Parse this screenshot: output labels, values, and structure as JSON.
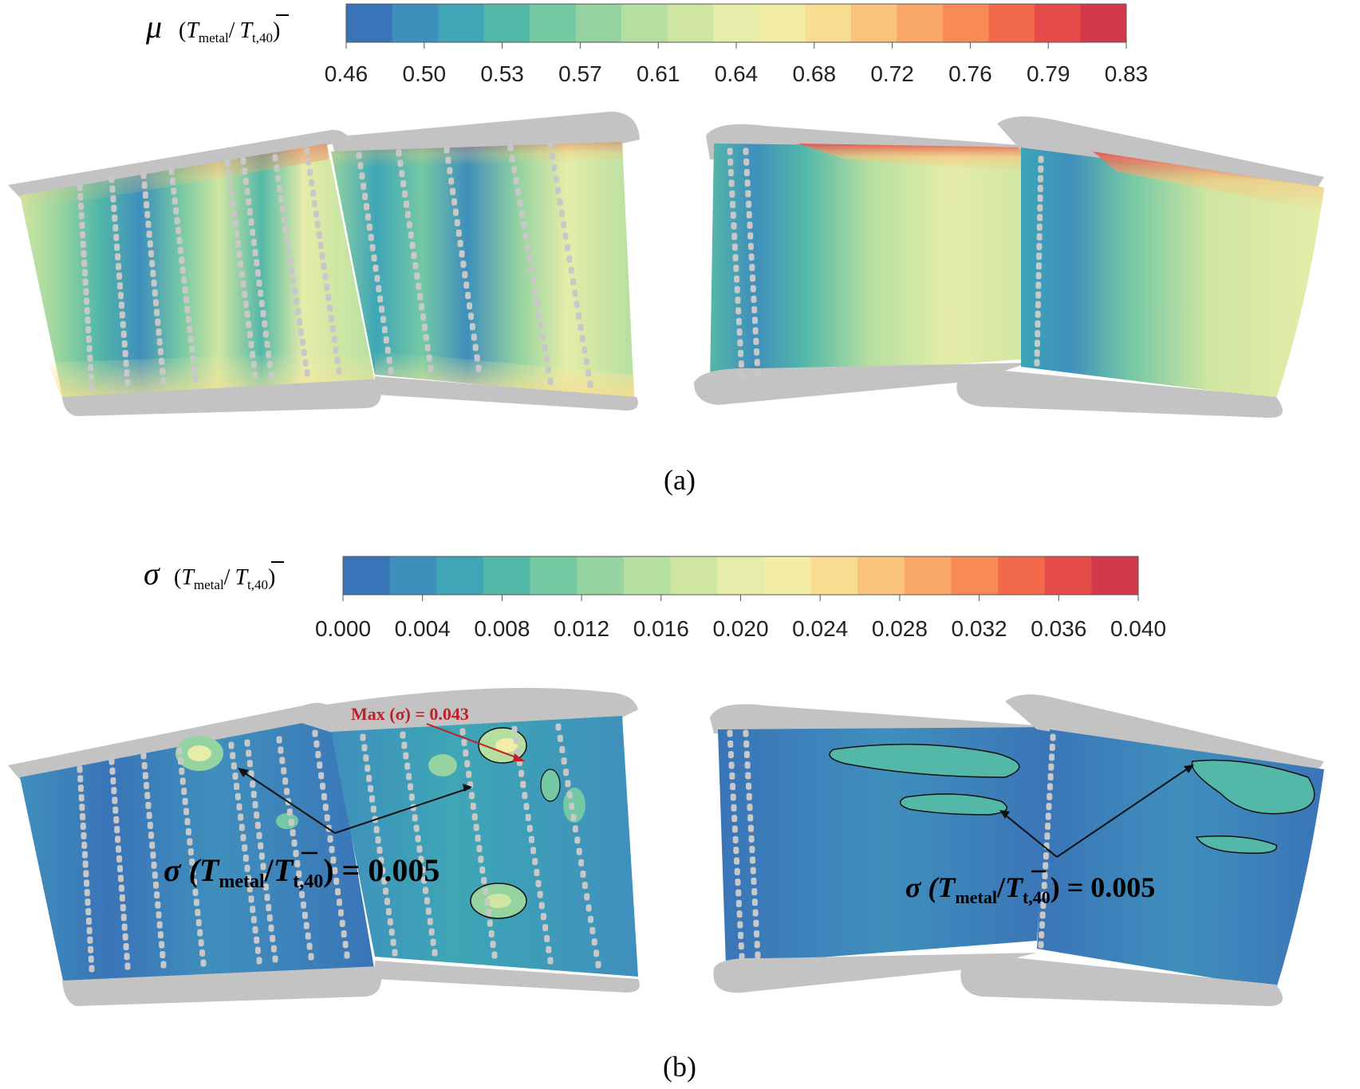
{
  "panel_a": {
    "label": "(a)",
    "legend": {
      "symbol": "μ",
      "open": "(",
      "numer": "T",
      "numer_sub": "metal",
      "slash": "/",
      "denom": "T",
      "denom_sub": "t,40",
      "close": ")"
    },
    "colorbar_ticks": [
      "0.46",
      "0.50",
      "0.53",
      "0.57",
      "0.61",
      "0.64",
      "0.68",
      "0.72",
      "0.76",
      "0.79",
      "0.83"
    ]
  },
  "panel_b": {
    "label": "(b)",
    "legend": {
      "symbol": "σ",
      "open": "(",
      "numer": "T",
      "numer_sub": "metal",
      "slash": "/",
      "denom": "T",
      "denom_sub": "t,40",
      "close": ")"
    },
    "colorbar_ticks": [
      "0.000",
      "0.004",
      "0.008",
      "0.012",
      "0.016",
      "0.020",
      "0.024",
      "0.028",
      "0.032",
      "0.036",
      "0.040"
    ],
    "annotation_max": "Max (σ) = 0.043",
    "contour_left": {
      "pre": "σ (",
      "numer": "T",
      "numer_sub": "metal",
      "slash": "/",
      "denom": "T",
      "denom_sub": "t,40",
      "post": ") = 0.005"
    },
    "contour_right": {
      "pre": "σ (",
      "numer": "T",
      "numer_sub": "metal",
      "slash": "/",
      "denom": "T",
      "denom_sub": "t,40",
      "post": ") = 0.005"
    }
  },
  "colors": {
    "colormap": [
      "#3a74b8",
      "#3f8fbc",
      "#3ea6b6",
      "#54b8a8",
      "#74c8a4",
      "#95d3a0",
      "#b5dfa0",
      "#cfe6a2",
      "#e5eda8",
      "#f4eda6",
      "#f7dc92",
      "#f9c37c",
      "#faa867",
      "#f88a56",
      "#f26a4b",
      "#e54c49",
      "#d23a4c"
    ],
    "endwall": "#c3c3c3",
    "contour_line": "#111111",
    "annotation_max": "#c0202a"
  }
}
